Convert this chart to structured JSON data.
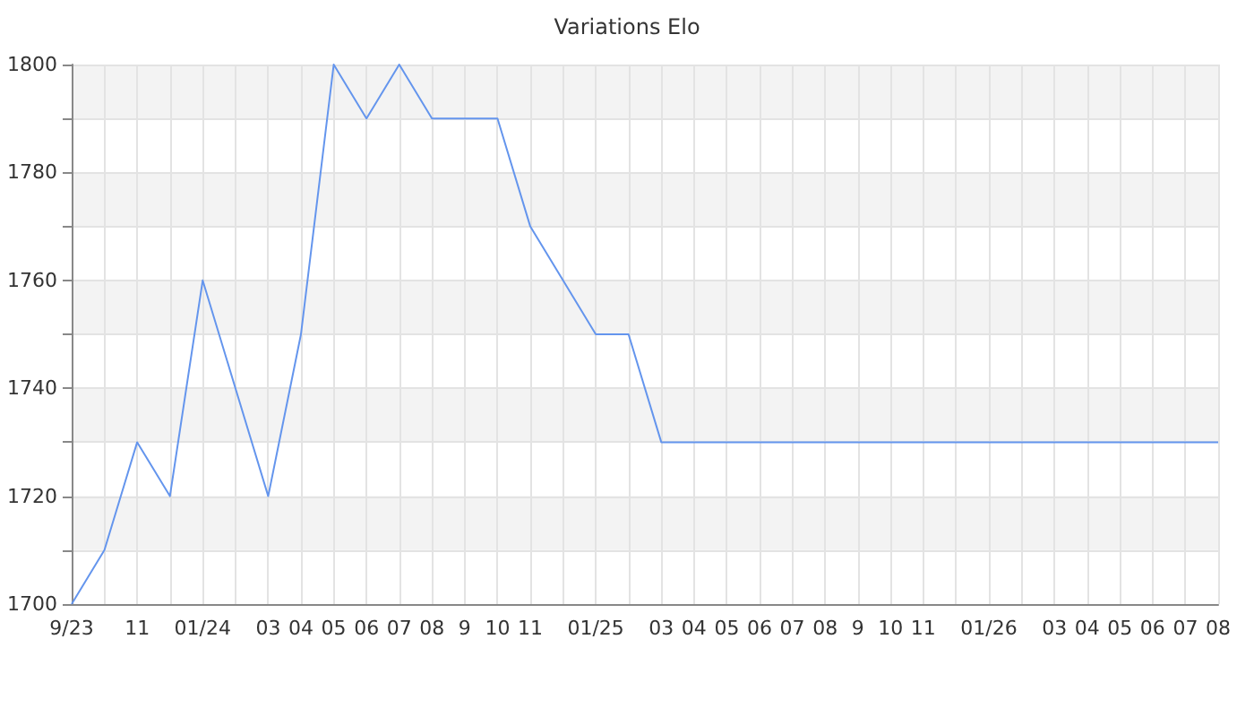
{
  "chart_data": {
    "type": "line",
    "title": "Variations Elo",
    "categories": [
      "9/23",
      null,
      "11",
      null,
      "01/24",
      null,
      "03",
      "04",
      "05",
      "06",
      "07",
      "08",
      "9",
      "10",
      "11",
      null,
      "01/25",
      null,
      "03",
      "04",
      "05",
      "06",
      "07",
      "08",
      "9",
      "10",
      "11",
      null,
      "01/26",
      null,
      "03",
      "04",
      "05",
      "06",
      "07",
      "08"
    ],
    "series": [
      {
        "color": "#6495ed",
        "values": [
          1700,
          1710,
          1730,
          1720,
          1760,
          1740,
          1720,
          1750,
          1800,
          1790,
          1800,
          1790,
          1790,
          1790,
          1770,
          1760,
          1750,
          1750,
          1730,
          1730,
          1730,
          1730,
          1730,
          1730,
          1730,
          1730,
          1730,
          1730,
          1730,
          1730,
          1730,
          1730,
          1730,
          1730,
          1730,
          1730
        ]
      }
    ],
    "ylim": [
      1700,
      1800
    ],
    "yticks": [
      1700,
      {
        "value": 1710,
        "label": null
      },
      1720,
      {
        "value": 1730,
        "label": null
      },
      1740,
      {
        "value": 1750,
        "label": null
      },
      1760,
      {
        "value": 1770,
        "label": null
      },
      1780,
      {
        "value": 1790,
        "label": null
      },
      1800
    ],
    "grid": true,
    "marker": "none",
    "line_style": "solid"
  }
}
